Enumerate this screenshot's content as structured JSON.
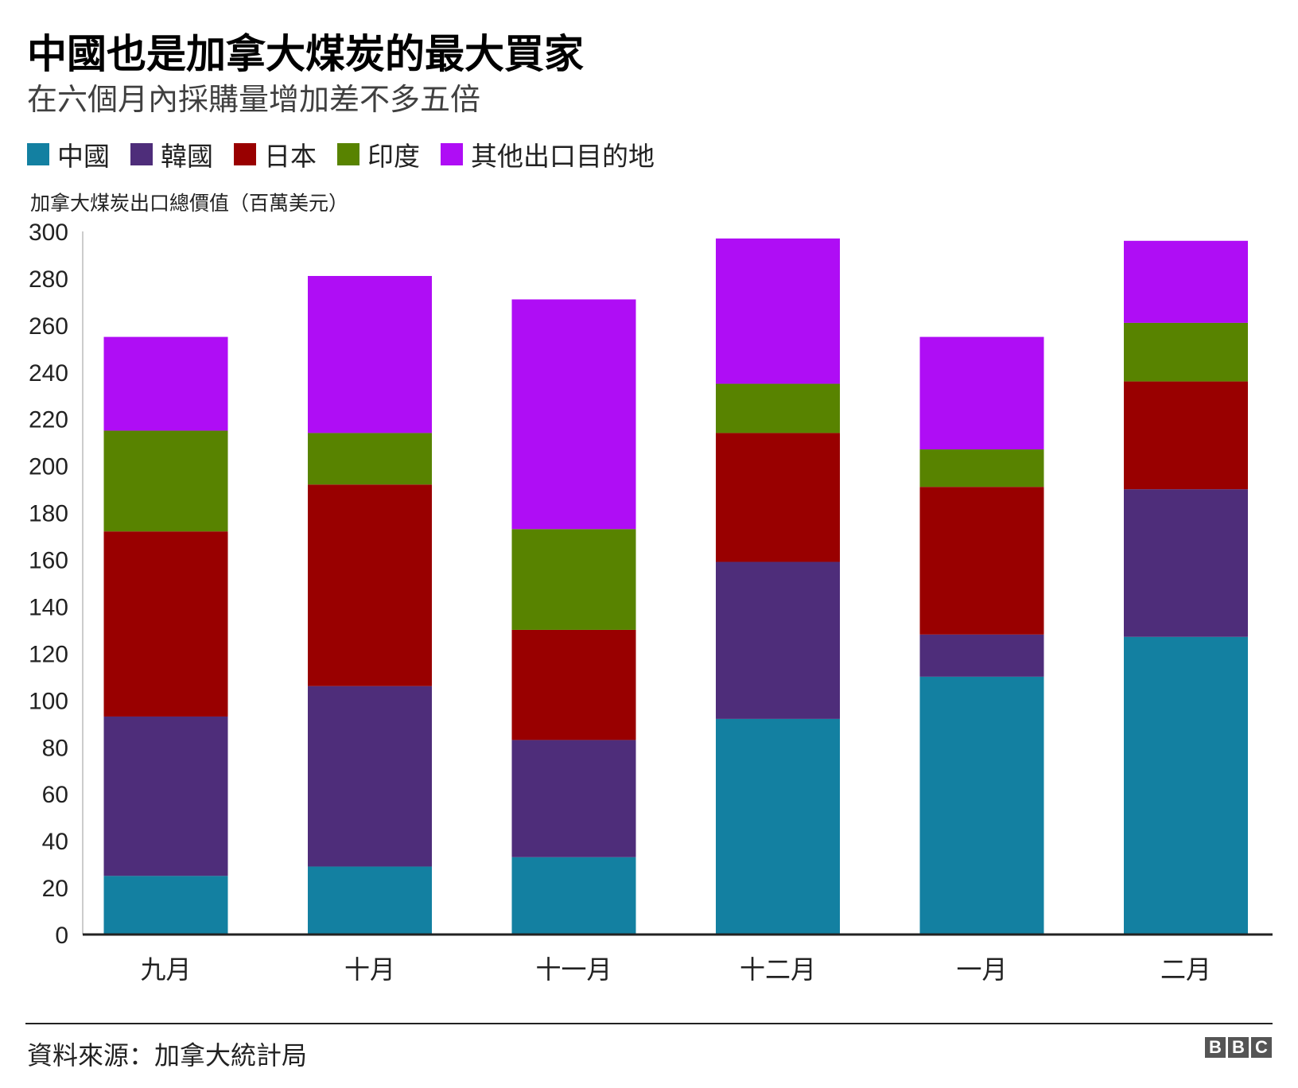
{
  "title": "中國也是加拿大煤炭的最大買家",
  "subtitle": "在六個月內採購量增加差不多五倍",
  "source": "資料來源：加拿大統計局",
  "logo_letters": [
    "B",
    "B",
    "C"
  ],
  "chart_data": {
    "type": "bar",
    "stacked": true,
    "ylabel": "加拿大煤炭出口總價值（百萬美元）",
    "xlabel": "",
    "ylim": [
      0,
      300
    ],
    "yticks": [
      0,
      20,
      40,
      60,
      80,
      100,
      120,
      140,
      160,
      180,
      200,
      220,
      240,
      260,
      280,
      300
    ],
    "grid": false,
    "legend_position": "top-left",
    "categories": [
      "九月",
      "十月",
      "十一月",
      "十二月",
      "一月",
      "二月"
    ],
    "series": [
      {
        "name": "中國",
        "color": "#1380a1",
        "values": [
          25,
          29,
          33,
          92,
          110,
          127
        ]
      },
      {
        "name": "韓國",
        "color": "#4e2d7a",
        "values": [
          68,
          77,
          50,
          67,
          18,
          63
        ]
      },
      {
        "name": "日本",
        "color": "#990000",
        "values": [
          79,
          86,
          47,
          55,
          63,
          46
        ]
      },
      {
        "name": "印度",
        "color": "#588300",
        "values": [
          43,
          22,
          43,
          21,
          16,
          25
        ]
      },
      {
        "name": "其他出口目的地",
        "color": "#af0df5",
        "values": [
          40,
          67,
          98,
          62,
          48,
          35
        ]
      }
    ]
  }
}
